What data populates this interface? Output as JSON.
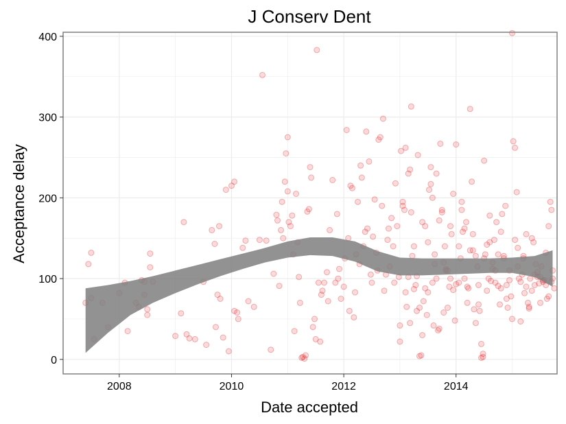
{
  "chart_data": {
    "type": "scatter",
    "title": "J Conserv Dent",
    "xlabel": "Date accepted",
    "ylabel": "Acceptance delay",
    "xlim": [
      2007.0,
      2015.8
    ],
    "ylim": [
      -18,
      405
    ],
    "x_ticks": [
      2008,
      2010,
      2012,
      2014
    ],
    "x_tick_labels": [
      "2008",
      "2010",
      "2012",
      "2014"
    ],
    "y_ticks": [
      0,
      100,
      200,
      300,
      400
    ],
    "y_tick_labels": [
      "0",
      "100",
      "200",
      "300",
      "400"
    ],
    "grid": true,
    "legend": "none",
    "colors": {
      "points": "#e41a1c",
      "smooth_band": "#7f7f7f",
      "grid": "#ebebeb",
      "frame": "#7f7f7f"
    },
    "points": [
      [
        2007.4,
        70
      ],
      [
        2007.45,
        118
      ],
      [
        2007.5,
        132
      ],
      [
        2007.5,
        76
      ],
      [
        2007.55,
        25
      ],
      [
        2007.7,
        70
      ],
      [
        2007.8,
        40
      ],
      [
        2008.0,
        82
      ],
      [
        2008.1,
        95
      ],
      [
        2008.15,
        35
      ],
      [
        2008.3,
        70
      ],
      [
        2008.35,
        65
      ],
      [
        2008.4,
        98
      ],
      [
        2008.45,
        96
      ],
      [
        2008.45,
        80
      ],
      [
        2008.5,
        55
      ],
      [
        2008.5,
        62
      ],
      [
        2008.55,
        131
      ],
      [
        2008.55,
        114
      ],
      [
        2008.6,
        96
      ],
      [
        2009.0,
        29
      ],
      [
        2009.1,
        57
      ],
      [
        2009.15,
        170
      ],
      [
        2009.2,
        31
      ],
      [
        2009.25,
        26
      ],
      [
        2009.35,
        25
      ],
      [
        2009.5,
        96
      ],
      [
        2009.55,
        18
      ],
      [
        2009.65,
        160
      ],
      [
        2009.7,
        143
      ],
      [
        2009.72,
        40
      ],
      [
        2009.75,
        80
      ],
      [
        2009.78,
        165
      ],
      [
        2009.8,
        75
      ],
      [
        2009.85,
        27
      ],
      [
        2009.9,
        210
      ],
      [
        2009.95,
        10
      ],
      [
        2010.0,
        215
      ],
      [
        2010.05,
        220
      ],
      [
        2010.05,
        60
      ],
      [
        2010.1,
        58
      ],
      [
        2010.12,
        50
      ],
      [
        2010.2,
        138
      ],
      [
        2010.25,
        147
      ],
      [
        2010.3,
        72
      ],
      [
        2010.4,
        65
      ],
      [
        2010.5,
        148
      ],
      [
        2010.55,
        352
      ],
      [
        2010.62,
        147
      ],
      [
        2010.7,
        12
      ],
      [
        2010.75,
        106
      ],
      [
        2010.8,
        179
      ],
      [
        2010.82,
        172
      ],
      [
        2010.85,
        91
      ],
      [
        2010.88,
        160
      ],
      [
        2010.9,
        195
      ],
      [
        2010.92,
        150
      ],
      [
        2010.95,
        220
      ],
      [
        2010.97,
        255
      ],
      [
        2011.0,
        275
      ],
      [
        2011.0,
        208
      ],
      [
        2011.02,
        170
      ],
      [
        2011.05,
        165
      ],
      [
        2011.08,
        178
      ],
      [
        2011.1,
        130
      ],
      [
        2011.12,
        35
      ],
      [
        2011.15,
        205
      ],
      [
        2011.18,
        145
      ],
      [
        2011.2,
        102
      ],
      [
        2011.22,
        70
      ],
      [
        2011.25,
        2
      ],
      [
        2011.27,
        3
      ],
      [
        2011.3,
        1
      ],
      [
        2011.32,
        5
      ],
      [
        2011.35,
        183
      ],
      [
        2011.38,
        186
      ],
      [
        2011.4,
        238
      ],
      [
        2011.42,
        225
      ],
      [
        2011.45,
        40
      ],
      [
        2011.48,
        50
      ],
      [
        2011.5,
        25
      ],
      [
        2011.52,
        383
      ],
      [
        2011.55,
        95
      ],
      [
        2011.58,
        22
      ],
      [
        2011.6,
        80
      ],
      [
        2011.62,
        85
      ],
      [
        2011.65,
        95
      ],
      [
        2011.7,
        108
      ],
      [
        2011.72,
        72
      ],
      [
        2011.75,
        160
      ],
      [
        2011.8,
        222
      ],
      [
        2011.85,
        95
      ],
      [
        2011.88,
        180
      ],
      [
        2011.9,
        100
      ],
      [
        2011.92,
        112
      ],
      [
        2011.95,
        75
      ],
      [
        2012.0,
        90
      ],
      [
        2012.02,
        125
      ],
      [
        2012.05,
        284
      ],
      [
        2012.08,
        150
      ],
      [
        2012.1,
        60
      ],
      [
        2012.12,
        215
      ],
      [
        2012.15,
        212
      ],
      [
        2012.18,
        52
      ],
      [
        2012.2,
        83
      ],
      [
        2012.22,
        130
      ],
      [
        2012.25,
        195
      ],
      [
        2012.28,
        118
      ],
      [
        2012.3,
        240
      ],
      [
        2012.32,
        225
      ],
      [
        2012.35,
        140
      ],
      [
        2012.38,
        158
      ],
      [
        2012.4,
        282
      ],
      [
        2012.42,
        162
      ],
      [
        2012.45,
        245
      ],
      [
        2012.48,
        105
      ],
      [
        2012.5,
        95
      ],
      [
        2012.52,
        152
      ],
      [
        2012.55,
        198
      ],
      [
        2012.58,
        132
      ],
      [
        2012.6,
        110
      ],
      [
        2012.62,
        272
      ],
      [
        2012.65,
        275
      ],
      [
        2012.68,
        190
      ],
      [
        2012.7,
        298
      ],
      [
        2012.72,
        85
      ],
      [
        2012.75,
        105
      ],
      [
        2012.78,
        148
      ],
      [
        2012.8,
        162
      ],
      [
        2012.82,
        115
      ],
      [
        2012.85,
        175
      ],
      [
        2012.88,
        140
      ],
      [
        2012.9,
        95
      ],
      [
        2012.92,
        218
      ],
      [
        2012.95,
        165
      ],
      [
        2012.98,
        102
      ],
      [
        2013.0,
        22
      ],
      [
        2013.02,
        258
      ],
      [
        2013.05,
        190
      ],
      [
        2013.08,
        185
      ],
      [
        2013.1,
        262
      ],
      [
        2013.12,
        65
      ],
      [
        2013.15,
        102
      ],
      [
        2013.18,
        45
      ],
      [
        2013.2,
        182
      ],
      [
        2013.22,
        128
      ],
      [
        2013.25,
        87
      ],
      [
        2013.28,
        92
      ],
      [
        2013.3,
        60
      ],
      [
        2013.32,
        253
      ],
      [
        2013.35,
        4
      ],
      [
        2013.38,
        5
      ],
      [
        2013.4,
        30
      ],
      [
        2013.42,
        72
      ],
      [
        2013.45,
        165
      ],
      [
        2013.48,
        55
      ],
      [
        2013.5,
        83
      ],
      [
        2013.52,
        210
      ],
      [
        2013.55,
        217
      ],
      [
        2013.58,
        200
      ],
      [
        2013.6,
        42
      ],
      [
        2013.62,
        130
      ],
      [
        2013.65,
        100
      ],
      [
        2013.68,
        36
      ],
      [
        2013.7,
        38
      ],
      [
        2013.72,
        267
      ],
      [
        2013.75,
        185
      ],
      [
        2013.78,
        58
      ],
      [
        2013.8,
        140
      ],
      [
        2013.82,
        112
      ],
      [
        2013.85,
        110
      ],
      [
        2013.88,
        90
      ],
      [
        2013.9,
        165
      ],
      [
        2013.92,
        155
      ],
      [
        2013.95,
        205
      ],
      [
        2013.98,
        48
      ],
      [
        2013.0,
        42
      ],
      [
        2013.05,
        195
      ],
      [
        2013.1,
        83
      ],
      [
        2013.15,
        230
      ],
      [
        2013.18,
        235
      ],
      [
        2013.2,
        313
      ],
      [
        2013.25,
        140
      ],
      [
        2013.3,
        103
      ],
      [
        2013.35,
        64
      ],
      [
        2013.4,
        170
      ],
      [
        2013.45,
        88
      ],
      [
        2013.5,
        145
      ],
      [
        2013.55,
        238
      ],
      [
        2013.58,
        95
      ],
      [
        2013.62,
        118
      ],
      [
        2013.65,
        230
      ],
      [
        2013.7,
        172
      ],
      [
        2013.75,
        182
      ],
      [
        2013.78,
        120
      ],
      [
        2013.82,
        110
      ],
      [
        2013.85,
        64
      ],
      [
        2013.9,
        100
      ],
      [
        2013.95,
        86
      ],
      [
        2014.0,
        266
      ],
      [
        2014.05,
        140
      ],
      [
        2014.08,
        125
      ],
      [
        2014.1,
        195
      ],
      [
        2014.12,
        158
      ],
      [
        2014.15,
        100
      ],
      [
        2014.18,
        170
      ],
      [
        2014.2,
        70
      ],
      [
        2014.22,
        88
      ],
      [
        2014.25,
        135
      ],
      [
        2014.28,
        220
      ],
      [
        2014.3,
        155
      ],
      [
        2014.32,
        62
      ],
      [
        2014.35,
        45
      ],
      [
        2014.38,
        115
      ],
      [
        2014.4,
        92
      ],
      [
        2014.42,
        60
      ],
      [
        2014.45,
        19
      ],
      [
        2014.48,
        7
      ],
      [
        2014.5,
        125
      ],
      [
        2014.52,
        130
      ],
      [
        2014.55,
        85
      ],
      [
        2014.58,
        100
      ],
      [
        2014.6,
        178
      ],
      [
        2014.62,
        97
      ],
      [
        2014.65,
        120
      ],
      [
        2014.68,
        148
      ],
      [
        2014.7,
        110
      ],
      [
        2014.72,
        170
      ],
      [
        2014.75,
        91
      ],
      [
        2014.78,
        68
      ],
      [
        2014.8,
        158
      ],
      [
        2014.82,
        180
      ],
      [
        2014.85,
        125
      ],
      [
        2014.88,
        190
      ],
      [
        2014.9,
        92
      ],
      [
        2014.92,
        64
      ],
      [
        2014.95,
        110
      ],
      [
        2014.98,
        78
      ],
      [
        2014.0,
        93
      ],
      [
        2014.05,
        95
      ],
      [
        2014.1,
        185
      ],
      [
        2014.15,
        162
      ],
      [
        2014.2,
        90
      ],
      [
        2014.25,
        310
      ],
      [
        2014.3,
        135
      ],
      [
        2014.35,
        128
      ],
      [
        2014.4,
        68
      ],
      [
        2014.45,
        2
      ],
      [
        2014.48,
        3
      ],
      [
        2014.5,
        246
      ],
      [
        2014.55,
        142
      ],
      [
        2014.6,
        145
      ],
      [
        2014.65,
        112
      ],
      [
        2014.7,
        95
      ],
      [
        2014.75,
        130
      ],
      [
        2014.8,
        88
      ],
      [
        2014.85,
        128
      ],
      [
        2014.9,
        75
      ],
      [
        2014.95,
        98
      ],
      [
        2015.0,
        404
      ],
      [
        2015.02,
        270
      ],
      [
        2015.05,
        262
      ],
      [
        2015.08,
        207
      ],
      [
        2015.1,
        138
      ],
      [
        2015.12,
        100
      ],
      [
        2015.15,
        96
      ],
      [
        2015.18,
        105
      ],
      [
        2015.2,
        125
      ],
      [
        2015.22,
        82
      ],
      [
        2015.25,
        90
      ],
      [
        2015.28,
        70
      ],
      [
        2015.3,
        63
      ],
      [
        2015.32,
        100
      ],
      [
        2015.35,
        150
      ],
      [
        2015.38,
        145
      ],
      [
        2015.4,
        105
      ],
      [
        2015.42,
        118
      ],
      [
        2015.45,
        108
      ],
      [
        2015.48,
        94
      ],
      [
        2015.5,
        102
      ],
      [
        2015.52,
        115
      ],
      [
        2015.55,
        96
      ],
      [
        2015.58,
        98
      ],
      [
        2015.6,
        92
      ],
      [
        2015.62,
        75
      ],
      [
        2015.65,
        165
      ],
      [
        2015.68,
        195
      ],
      [
        2015.7,
        185
      ],
      [
        2015.72,
        110
      ],
      [
        2015.75,
        88
      ],
      [
        2015.0,
        50
      ],
      [
        2015.05,
        148
      ],
      [
        2015.1,
        115
      ],
      [
        2015.15,
        47
      ],
      [
        2015.2,
        128
      ],
      [
        2015.25,
        155
      ],
      [
        2015.3,
        65
      ],
      [
        2015.35,
        85
      ],
      [
        2015.4,
        92
      ],
      [
        2015.45,
        102
      ],
      [
        2015.5,
        70
      ],
      [
        2015.55,
        98
      ],
      [
        2015.6,
        132
      ],
      [
        2015.65,
        78
      ],
      [
        2015.7,
        96
      ],
      [
        2015.72,
        100
      ]
    ],
    "smooth_band": {
      "x": [
        2007.4,
        2007.8,
        2008.2,
        2008.6,
        2009.0,
        2009.4,
        2009.8,
        2010.2,
        2010.6,
        2011.0,
        2011.4,
        2011.8,
        2012.2,
        2012.6,
        2013.0,
        2013.4,
        2013.8,
        2014.2,
        2014.6,
        2015.0,
        2015.4,
        2015.72
      ],
      "upper": [
        88,
        92,
        97,
        103,
        110,
        117,
        124,
        131,
        138,
        146,
        151,
        151,
        146,
        134,
        126,
        125,
        125,
        125,
        125,
        126,
        128,
        135
      ],
      "lower": [
        8,
        33,
        55,
        70,
        82,
        93,
        103,
        112,
        120,
        126,
        129,
        128,
        121,
        109,
        104,
        104,
        105,
        106,
        107,
        107,
        102,
        90
      ]
    }
  }
}
